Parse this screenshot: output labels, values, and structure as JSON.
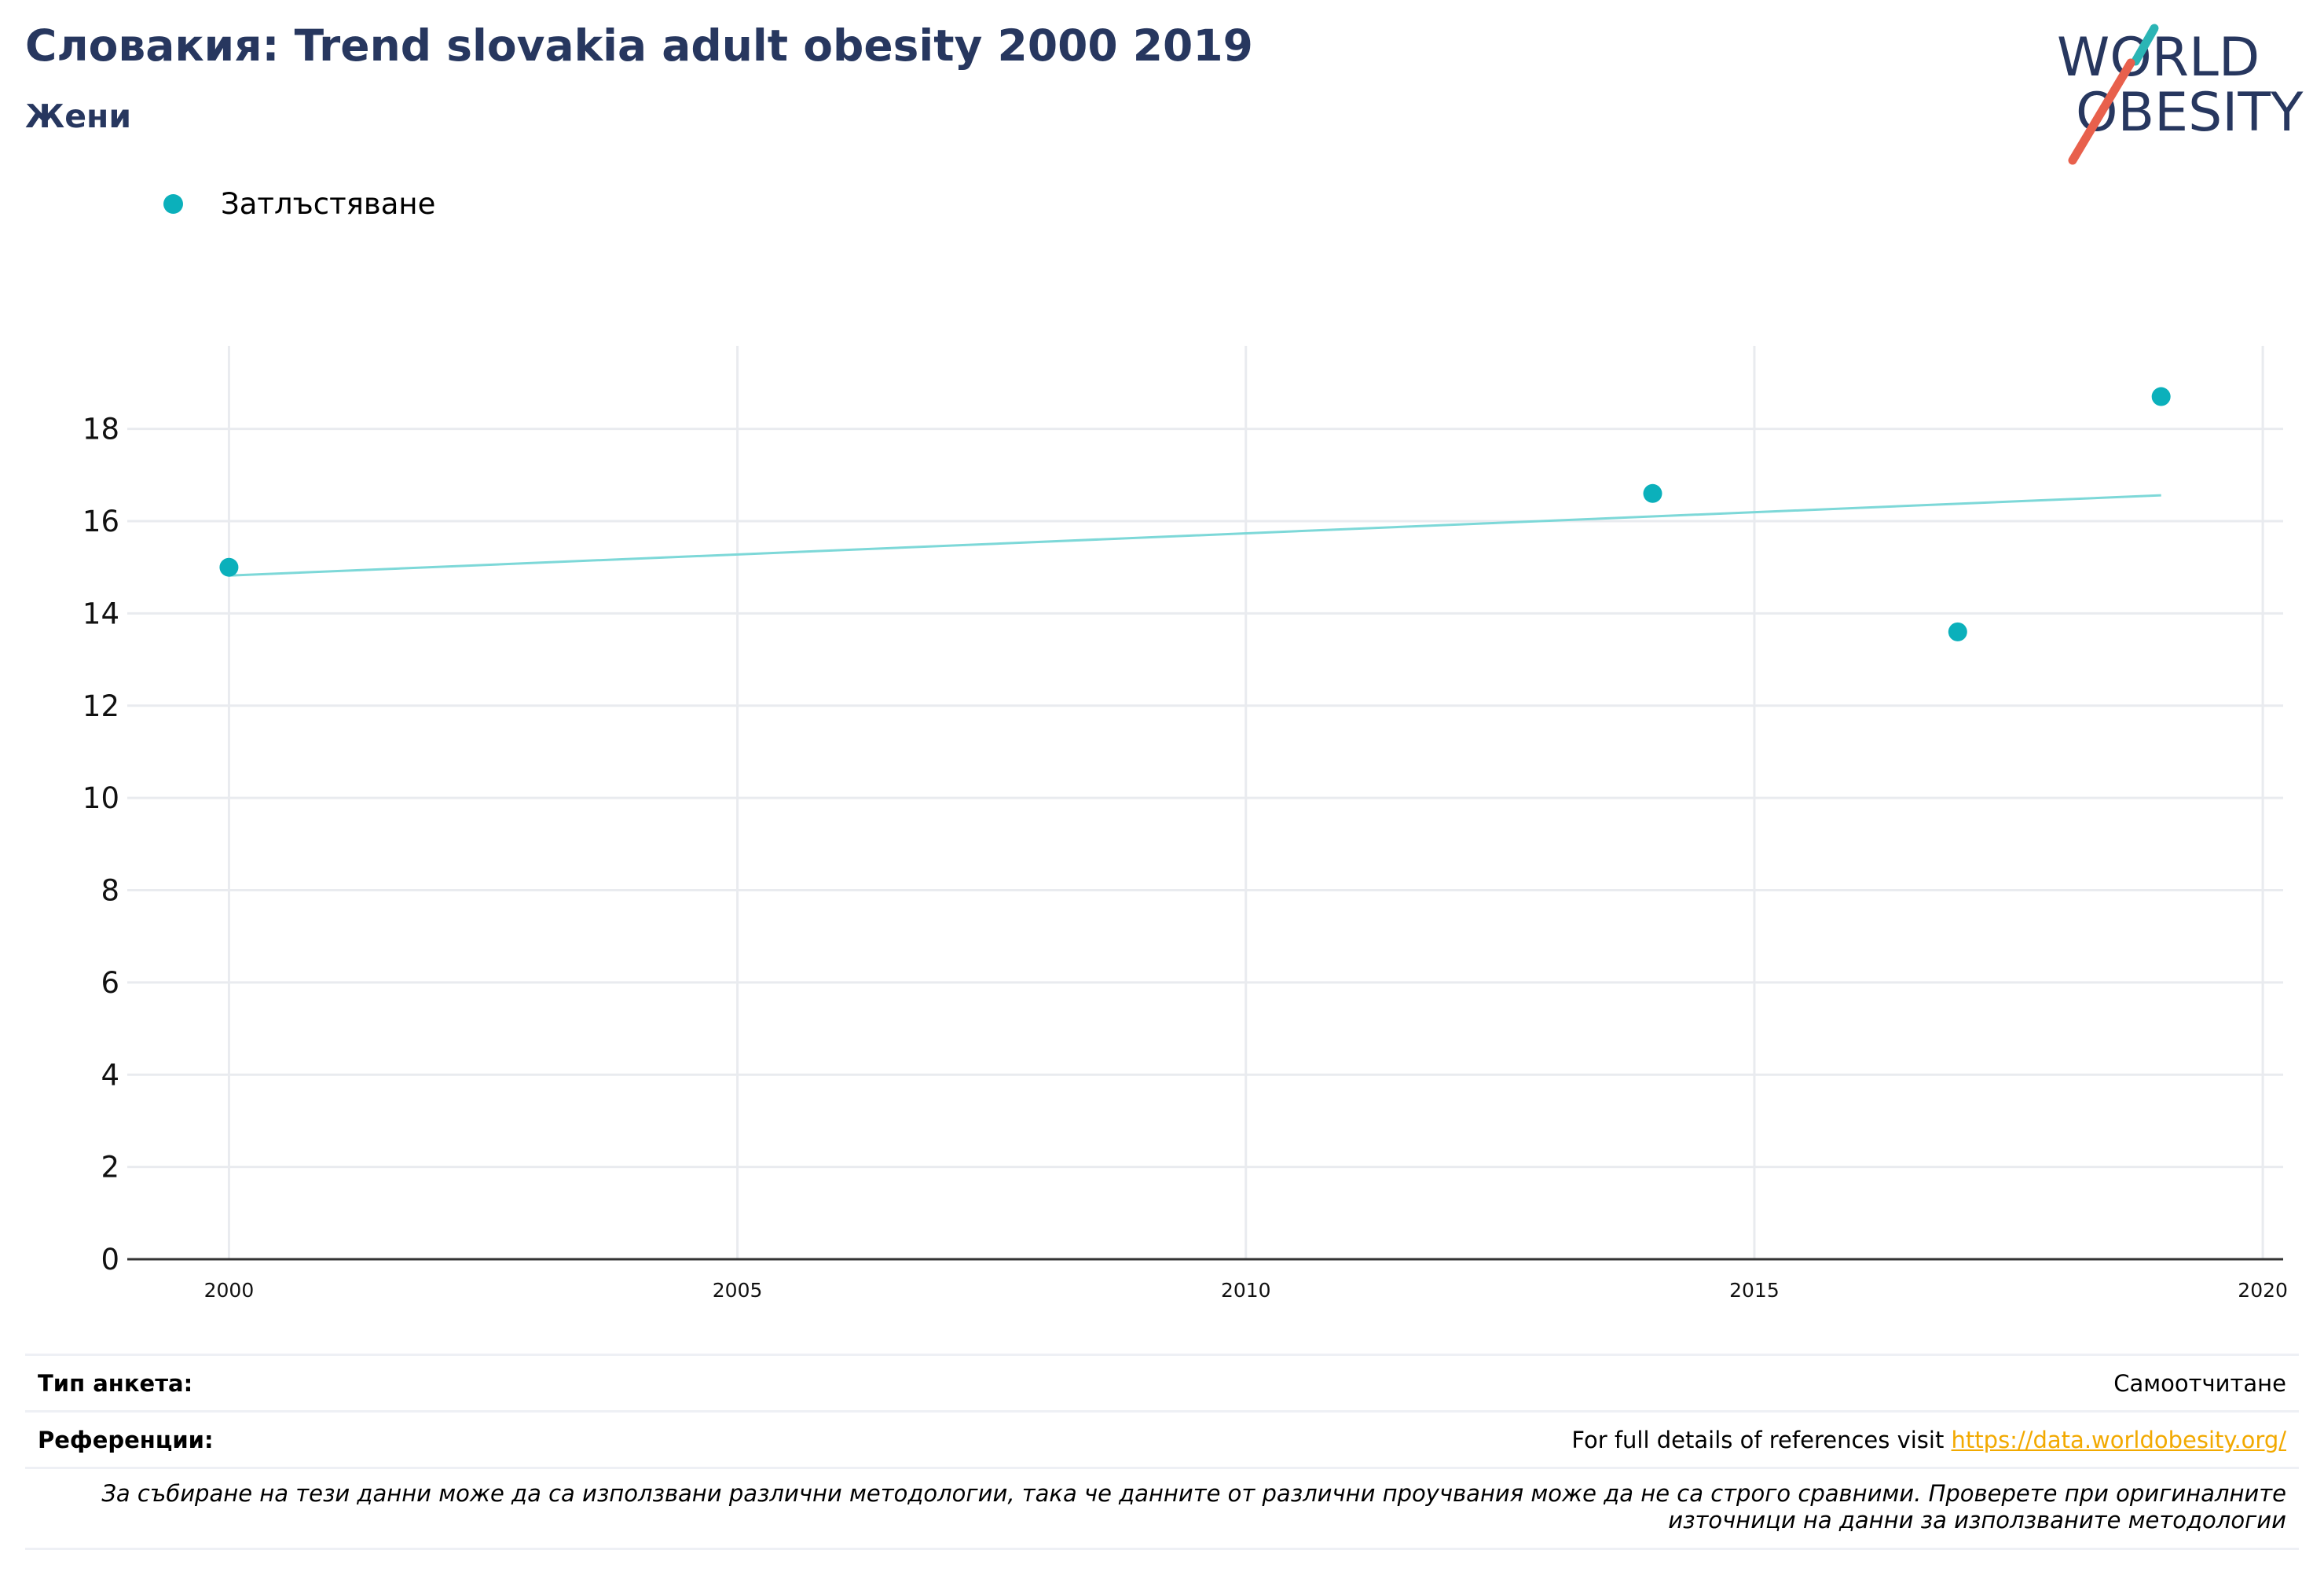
{
  "title": "Словакия: Trend slovakia adult obesity 2000 2019",
  "subtitle": "Жени",
  "logo": {
    "line1": "WORLD",
    "line2": "OBESITY",
    "accent_teal": "#2bb5b5",
    "accent_red": "#e8604c",
    "text_color": "#27375f"
  },
  "legend": [
    {
      "label": "Затлъстяване",
      "color": "#0bb0bb"
    }
  ],
  "chart_data": {
    "type": "scatter",
    "title": "Словакия: Trend slovakia adult obesity 2000 2019",
    "subtitle": "Жени",
    "xlabel": "",
    "ylabel": "",
    "xlim": [
      1999,
      2020.2
    ],
    "ylim": [
      0,
      19.8
    ],
    "x_ticks": [
      2000,
      2005,
      2010,
      2015,
      2020
    ],
    "y_ticks": [
      0,
      2,
      4,
      6,
      8,
      10,
      12,
      14,
      16,
      18
    ],
    "grid": true,
    "legend_position": "top-left",
    "series": [
      {
        "name": "Затлъстяване",
        "color": "#0bb0bb",
        "points": [
          {
            "x": 2000,
            "y": 15.0
          },
          {
            "x": 2014,
            "y": 16.6
          },
          {
            "x": 2017,
            "y": 13.6
          },
          {
            "x": 2019,
            "y": 18.7
          }
        ]
      }
    ],
    "trendline": {
      "color": "#7dd8d8",
      "from": {
        "x": 2000,
        "y": 14.82
      },
      "to": {
        "x": 2019,
        "y": 16.56
      }
    }
  },
  "meta": {
    "survey_type_label": "Тип анкета:",
    "survey_type_value": "Самоотчитане",
    "references_label": "Референции:",
    "references_text": "For full details of references visit ",
    "references_link": "https://data.worldobesity.org/",
    "note": "За събиране на тези данни може да са използвани различни методологии, така че данните от различни проучвания може да не са строго сравними. Проверете при оригиналните източници на данни за използваните методологии"
  }
}
